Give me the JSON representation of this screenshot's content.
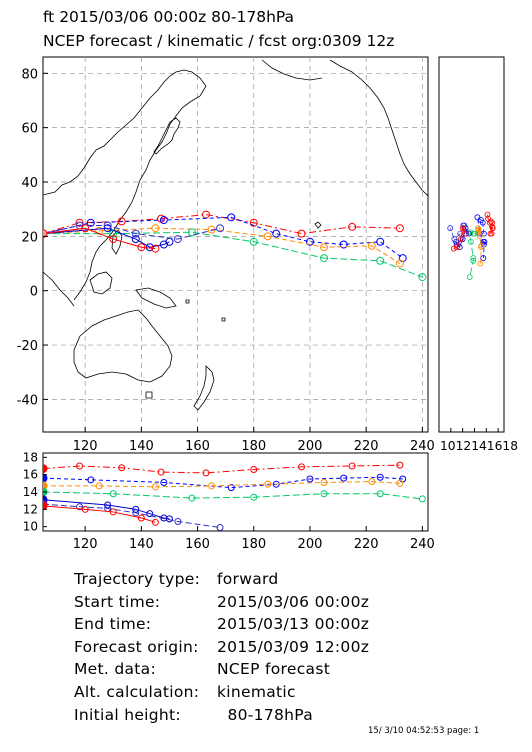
{
  "header": {
    "line1": "ft 2015/03/06 00:00z  80-178hPa",
    "line2": "NCEP forecast / kinematic / fcst org:0309 12z"
  },
  "info": {
    "rows": [
      {
        "label": "Trajectory type:",
        "value": "forward"
      },
      {
        "label": "Start time:",
        "value": "2015/03/06 00:00z"
      },
      {
        "label": "End time:",
        "value": "2015/03/13 00:00z"
      },
      {
        "label": "Forecast origin:",
        "value": "2015/03/09 12:00z"
      },
      {
        "label": "Met. data:",
        "value": "NCEP forecast"
      },
      {
        "label": "Alt. calculation:",
        "value": "kinematic"
      },
      {
        "label": "Initial height:",
        "value": "  80-178hPa"
      }
    ]
  },
  "footer": "15/ 3/10 04:52:53 page: 1",
  "chart_data": {
    "type": "line",
    "map": {
      "xlim": [
        105,
        242
      ],
      "ylim": [
        -52,
        86
      ],
      "x_ticks": [
        120,
        140,
        160,
        180,
        200,
        220,
        240
      ],
      "y_ticks": [
        -40,
        -20,
        0,
        20,
        40,
        60,
        80
      ],
      "grid": true
    },
    "height_panel": {
      "xlim": [
        105,
        242
      ],
      "ylim": [
        9.5,
        18.5
      ],
      "x_ticks": [
        120,
        140,
        160,
        180,
        200,
        220,
        240
      ],
      "y_ticks": [
        10,
        12,
        14,
        16,
        18
      ]
    },
    "side_panel": {
      "xlim": [
        8,
        19
      ],
      "ylim": [
        -52,
        86
      ],
      "tick_labels_text": "1012141618",
      "tick_values": [
        10,
        12,
        14,
        16,
        18
      ]
    },
    "series": [
      {
        "color": "#ff0000",
        "dash": "7,3,2,3",
        "lon": [
          105,
          118,
          133,
          147,
          163,
          180,
          197,
          215,
          232
        ],
        "lat": [
          21,
          25,
          25.5,
          26.5,
          28,
          25,
          21,
          23.5,
          23
        ],
        "height": [
          16.7,
          17.0,
          16.8,
          16.3,
          16.2,
          16.6,
          16.9,
          17.0,
          17.1
        ]
      },
      {
        "color": "#0000ff",
        "dash": "4,3",
        "lon": [
          105,
          122,
          148,
          172,
          188,
          200,
          212,
          225,
          233
        ],
        "lat": [
          21,
          25,
          26,
          27,
          21,
          18,
          17,
          18,
          12
        ],
        "height": [
          15.6,
          15.4,
          15.1,
          14.5,
          14.9,
          15.5,
          15.6,
          15.7,
          15.5
        ]
      },
      {
        "color": "#ff8c00",
        "dash": "5,3",
        "lon": [
          105,
          125,
          145,
          165,
          185,
          205,
          222,
          232
        ],
        "lat": [
          21,
          22,
          23,
          22.5,
          20,
          16,
          16.5,
          10
        ],
        "height": [
          14.7,
          14.7,
          14.6,
          14.7,
          14.9,
          15.1,
          15.2,
          15.0
        ]
      },
      {
        "color": "#00cc66",
        "dash": "7,3",
        "lon": [
          105,
          130,
          158,
          180,
          205,
          225,
          240
        ],
        "lat": [
          21,
          21,
          21.5,
          18,
          12,
          11,
          5
        ],
        "height": [
          14.0,
          13.8,
          13.3,
          13.4,
          13.8,
          13.8,
          13.2
        ]
      },
      {
        "color": "#0000cc",
        "dash": "",
        "lon": [
          105,
          128,
          138,
          143,
          148,
          150
        ],
        "lat": [
          21,
          23,
          19,
          16,
          17,
          18
        ],
        "height": [
          13.1,
          12.5,
          12.0,
          11.5,
          11.0,
          10.9
        ]
      },
      {
        "color": "#3333cc",
        "dash": "6,3",
        "lon": [
          105,
          118,
          128,
          138,
          153,
          168
        ],
        "lat": [
          21,
          24,
          24,
          21,
          19,
          23
        ],
        "height": [
          12.6,
          12.3,
          12.1,
          11.6,
          10.6,
          9.9
        ]
      },
      {
        "color": "#ff0000",
        "dash": "",
        "lon": [
          105,
          120,
          130,
          140,
          145
        ],
        "lat": [
          21,
          23,
          19,
          16,
          15.5
        ],
        "height": [
          12.4,
          12.0,
          11.7,
          11.0,
          10.5
        ]
      }
    ]
  }
}
